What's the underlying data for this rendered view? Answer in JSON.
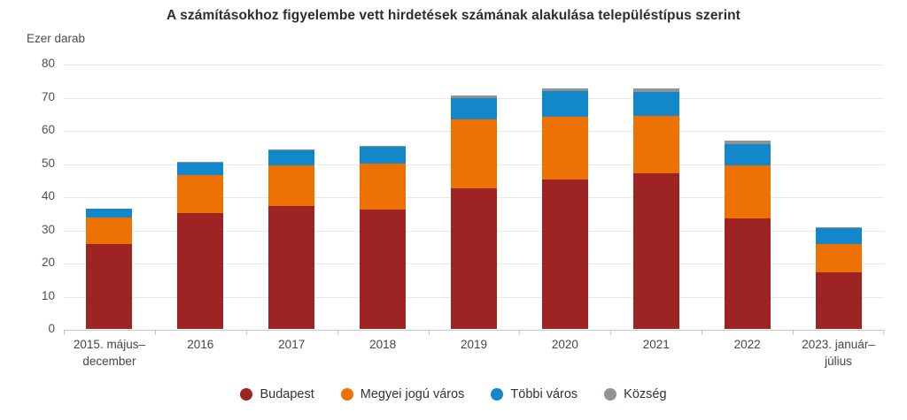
{
  "title": "A számításokhoz figyelembe vett hirdetések számának alakulása településtípus szerint",
  "chart_data": {
    "type": "bar",
    "stacked": true,
    "title": "A számításokhoz figyelembe vett hirdetések számának alakulása településtípus szerint",
    "xlabel": "",
    "ylabel": "Ezer darab",
    "ylim": [
      0,
      80
    ],
    "yticks": [
      0,
      10,
      20,
      30,
      40,
      50,
      60,
      70,
      80
    ],
    "grid": true,
    "legend_position": "bottom",
    "categories": [
      "2015. május–\ndecember",
      "2016",
      "2017",
      "2018",
      "2019",
      "2020",
      "2021",
      "2022",
      "2023. január–\njúlius"
    ],
    "series": [
      {
        "name": "Budapest",
        "color": "#9e2423",
        "values": [
          25.7,
          35.0,
          37.0,
          36.0,
          42.5,
          45.0,
          47.0,
          33.3,
          17.0
        ]
      },
      {
        "name": "Megyei jogú város",
        "color": "#ee7104",
        "values": [
          8.0,
          11.4,
          12.4,
          14.0,
          20.7,
          19.0,
          17.4,
          16.0,
          8.7
        ]
      },
      {
        "name": "Többi város",
        "color": "#1287ca",
        "values": [
          2.5,
          3.8,
          4.4,
          4.9,
          6.3,
          7.8,
          7.1,
          6.5,
          4.7
        ]
      },
      {
        "name": "Község",
        "color": "#8d958e",
        "values": [
          0.2,
          0.2,
          0.3,
          0.4,
          1.0,
          0.7,
          1.0,
          1.0,
          0.2
        ]
      }
    ],
    "totals": [
      36.4,
      50.4,
      54.1,
      55.3,
      70.5,
      72.5,
      72.5,
      56.8,
      30.6
    ]
  },
  "colors": {
    "background": "#ffffff",
    "gridline": "#e9e9e9",
    "axis_line": "#c6c6c6",
    "title_text": "#2d2d2d",
    "axis_text": "#4f4f4f",
    "legend_text": "#333333"
  }
}
